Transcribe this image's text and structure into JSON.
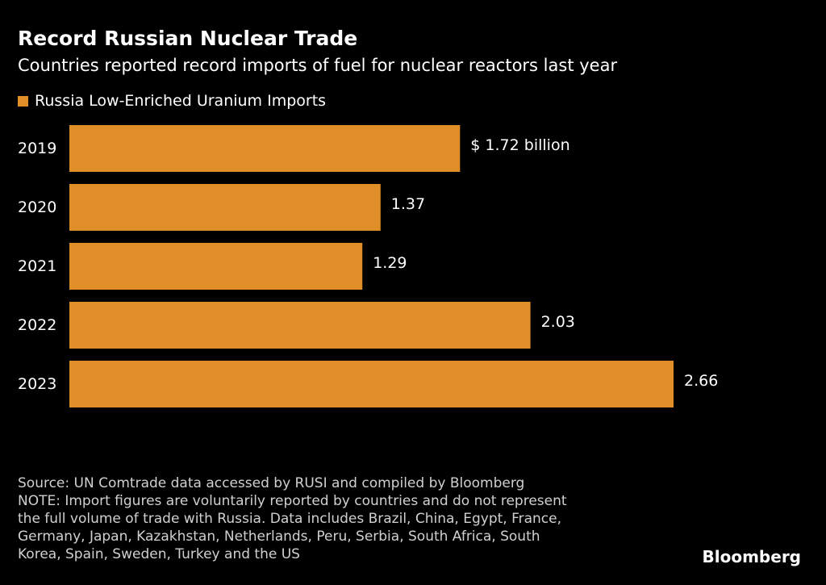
{
  "header": {
    "title": "Record Russian Nuclear Trade",
    "subtitle": "Countries reported record imports of fuel for nuclear reactors last year"
  },
  "colors": {
    "background": "#000000",
    "bar": "#E08E27",
    "text": "#FFFFFF",
    "footnote_text": "#D0D0D0"
  },
  "chart_data": {
    "type": "bar",
    "orientation": "horizontal",
    "categories": [
      "2019",
      "2020",
      "2021",
      "2022",
      "2023"
    ],
    "series": [
      {
        "name": "Russia Low-Enriched Uranium Imports",
        "values": [
          1.72,
          1.37,
          1.29,
          2.03,
          2.66
        ]
      }
    ],
    "data_labels": [
      "$ 1.72 billion",
      "1.37",
      "1.29",
      "2.03",
      "2.66"
    ],
    "legend_position": "top-left",
    "grid": false,
    "xlim": [
      0,
      2.66
    ]
  },
  "footnote": {
    "source": "Source: UN Comtrade data accessed by RUSI and compiled by Bloomberg",
    "note": "NOTE: Import figures are voluntarily reported by countries and do not represent\nthe full volume of trade with Russia. Data includes Brazil, China, Egypt, France,\nGermany, Japan, Kazakhstan, Netherlands, Peru, Serbia, South Africa, South\nKorea, Spain, Sweden, Turkey and the US"
  },
  "brand": "Bloomberg"
}
